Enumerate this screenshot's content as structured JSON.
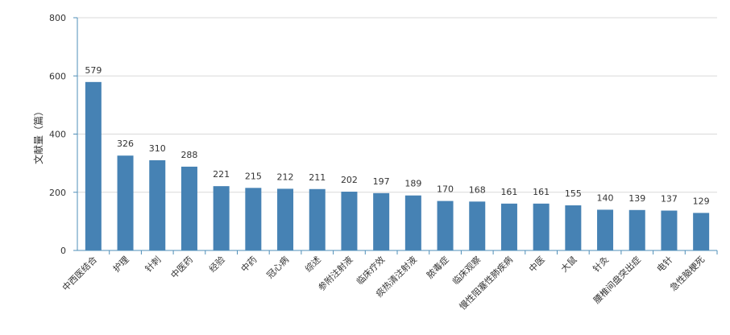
{
  "chart_data": {
    "type": "bar",
    "title": "",
    "xlabel": "",
    "ylabel": "文献量（篇）",
    "ylim": [
      0,
      800
    ],
    "yticks": [
      0,
      200,
      400,
      600,
      800
    ],
    "grid": true,
    "categories": [
      "中西医结合",
      "护理",
      "针刺",
      "中医药",
      "经验",
      "中药",
      "冠心病",
      "综述",
      "参附注射液",
      "临床疗效",
      "痰热清注射液",
      "脓毒症",
      "临床观察",
      "慢性阻塞性肺疾病",
      "中医",
      "大鼠",
      "针灸",
      "腰椎间盘突出症",
      "电针",
      "急性脑梗死"
    ],
    "values": [
      579,
      326,
      310,
      288,
      221,
      215,
      212,
      211,
      202,
      197,
      189,
      170,
      168,
      161,
      161,
      155,
      140,
      139,
      137,
      129
    ],
    "bar_color": "#4682b4",
    "grid_color": "#d9d9d9",
    "axis_color": "#4f8fb8"
  }
}
